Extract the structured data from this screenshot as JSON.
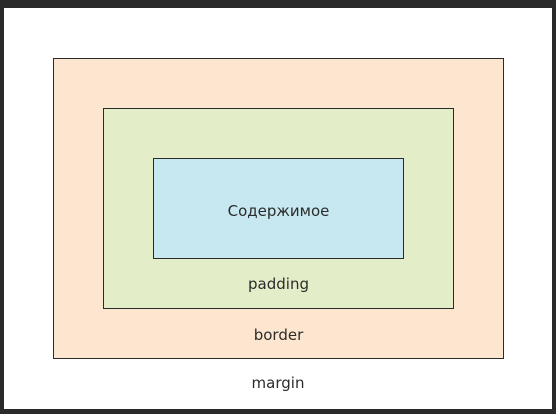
{
  "diagram": {
    "labels": {
      "content": "Содержимое",
      "padding": "padding",
      "border": "border",
      "margin": "margin"
    },
    "colors": {
      "margin_area": "#ffffff",
      "border_area": "#fde6cf",
      "padding_area": "#e3eec9",
      "content_area": "#c8e8f1",
      "outline": "#2b2b2b"
    }
  }
}
